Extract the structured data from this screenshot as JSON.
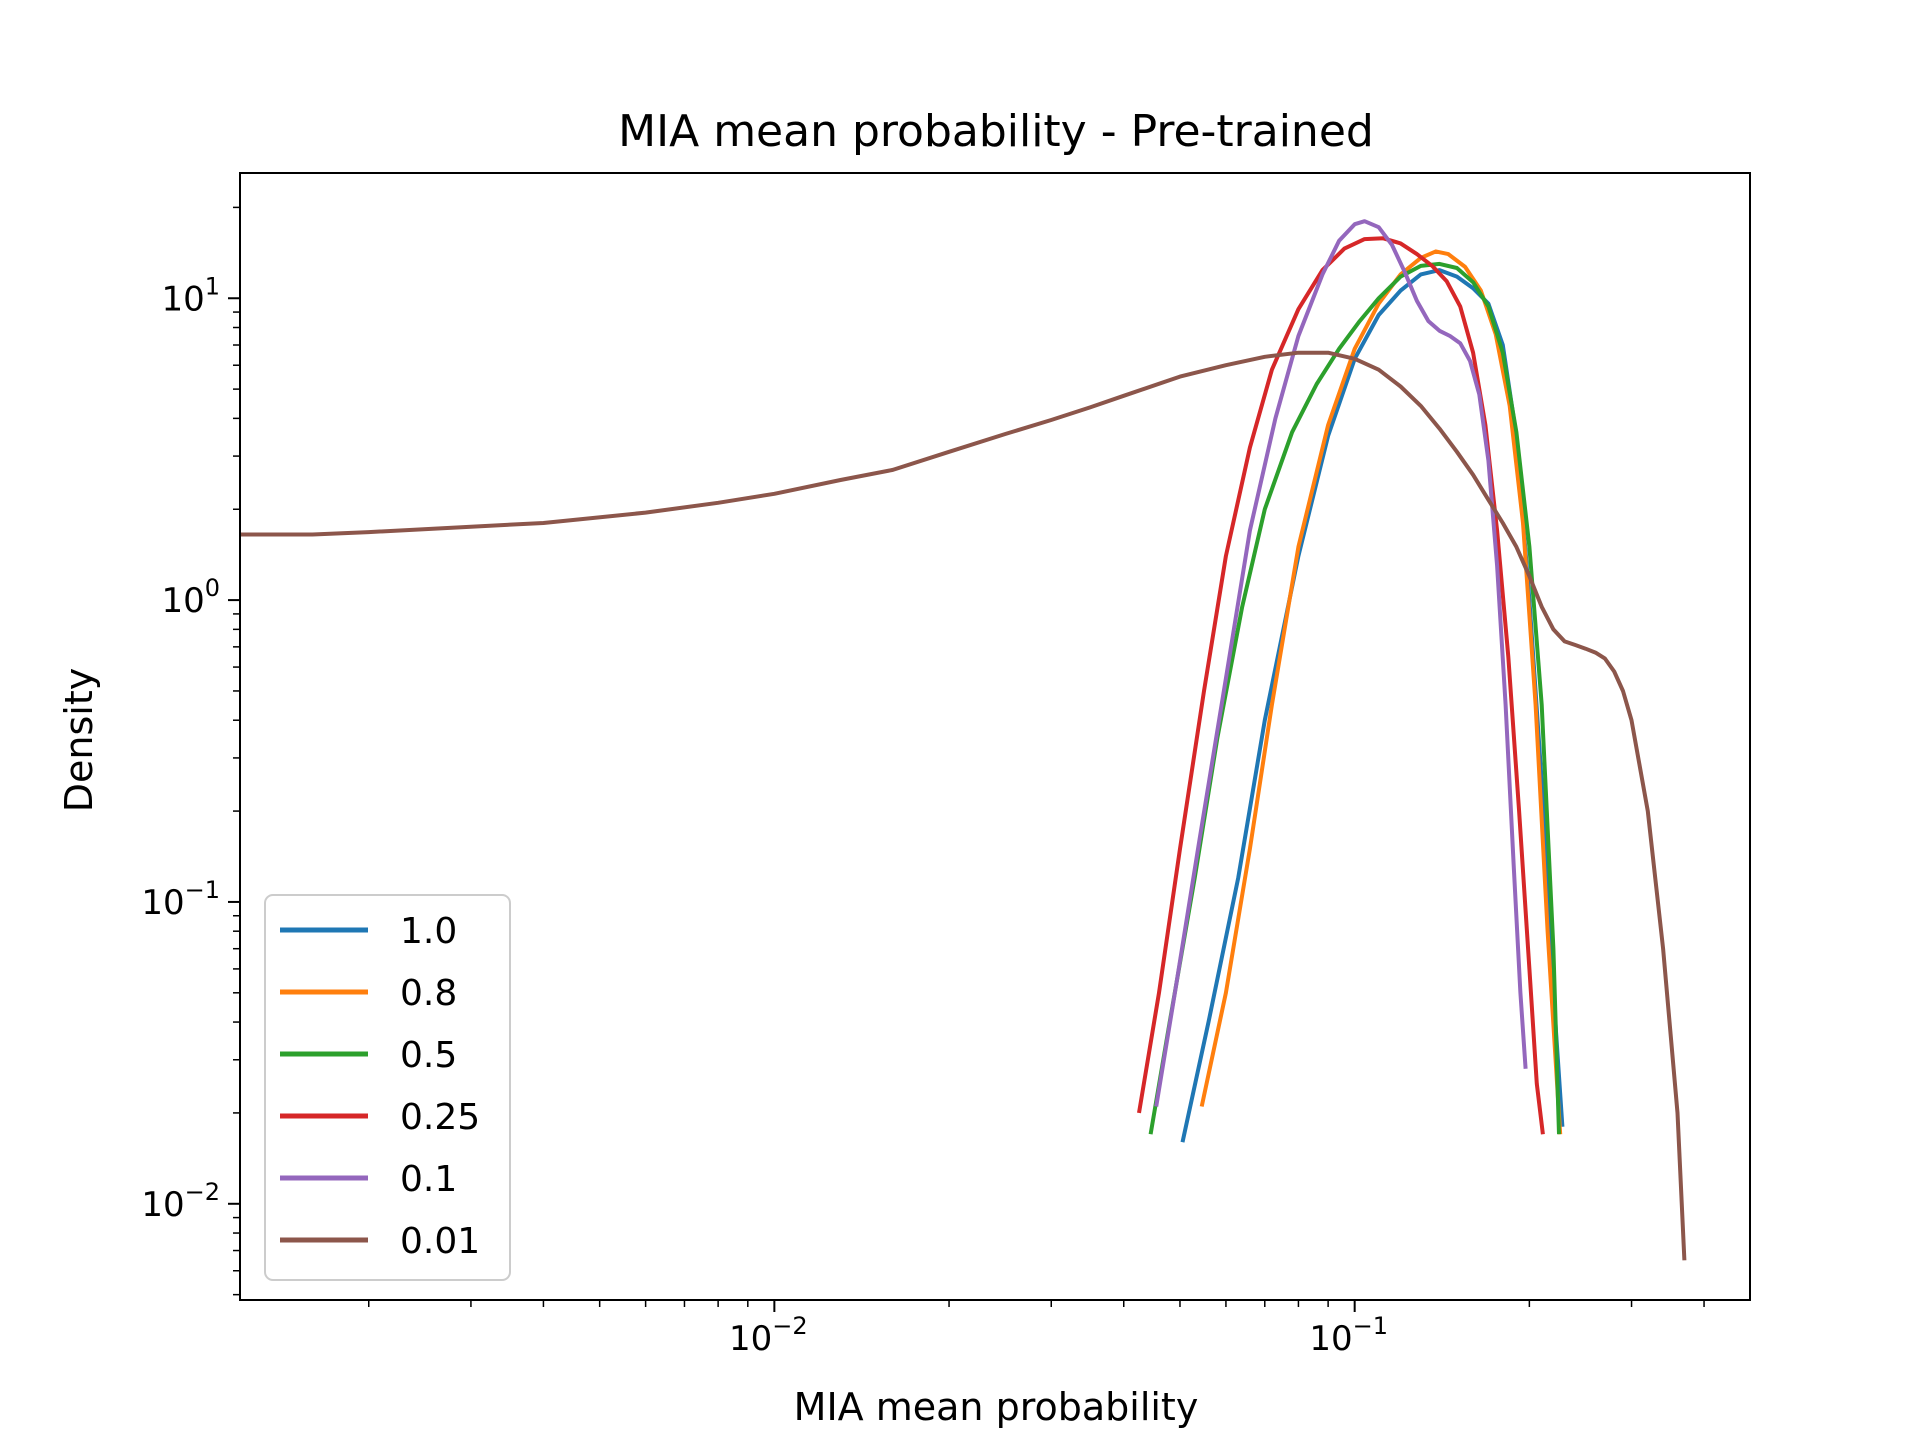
{
  "chart_data": {
    "type": "line",
    "title": "MIA mean probability - Pre-trained",
    "xlabel": "MIA mean probability",
    "ylabel": "Density",
    "xscale": "log",
    "yscale": "log",
    "xlim": [
      0.0012,
      0.48
    ],
    "ylim": [
      0.0048,
      26
    ],
    "x_ticks": [
      {
        "base": "10",
        "exp": "−2",
        "value": 0.01
      },
      {
        "base": "10",
        "exp": "−1",
        "value": 0.1
      }
    ],
    "y_ticks": [
      {
        "base": "10",
        "exp": "1",
        "value": 10
      },
      {
        "base": "10",
        "exp": "0",
        "value": 1
      },
      {
        "base": "10",
        "exp": "−1",
        "value": 0.1
      },
      {
        "base": "10",
        "exp": "−2",
        "value": 0.01
      }
    ],
    "legend_position": "lower-left",
    "series": [
      {
        "name": "1.0",
        "color": "#1f77b4",
        "x": [
          0.0505,
          0.056,
          0.063,
          0.07,
          0.08,
          0.09,
          0.1,
          0.11,
          0.12,
          0.13,
          0.14,
          0.15,
          0.16,
          0.17,
          0.18,
          0.19,
          0.2,
          0.21,
          0.22,
          0.228
        ],
        "y": [
          0.016,
          0.04,
          0.12,
          0.4,
          1.4,
          3.5,
          6.3,
          8.8,
          10.6,
          12.0,
          12.4,
          11.8,
          10.8,
          9.6,
          7.0,
          3.5,
          1.0,
          0.25,
          0.05,
          0.018
        ]
      },
      {
        "name": "0.8",
        "color": "#ff7f0e",
        "x": [
          0.0545,
          0.06,
          0.066,
          0.072,
          0.08,
          0.09,
          0.1,
          0.11,
          0.12,
          0.13,
          0.138,
          0.145,
          0.155,
          0.165,
          0.175,
          0.185,
          0.195,
          0.205,
          0.215,
          0.226
        ],
        "y": [
          0.021,
          0.05,
          0.15,
          0.45,
          1.5,
          3.8,
          6.8,
          9.6,
          12.0,
          13.6,
          14.3,
          14.0,
          12.7,
          10.6,
          7.6,
          4.4,
          1.8,
          0.45,
          0.08,
          0.017
        ]
      },
      {
        "name": "0.5",
        "color": "#2ca02c",
        "x": [
          0.0445,
          0.048,
          0.053,
          0.058,
          0.064,
          0.07,
          0.078,
          0.086,
          0.094,
          0.102,
          0.11,
          0.12,
          0.13,
          0.14,
          0.15,
          0.16,
          0.17,
          0.18,
          0.19,
          0.2,
          0.21,
          0.22,
          0.225
        ],
        "y": [
          0.017,
          0.04,
          0.12,
          0.35,
          0.95,
          2.0,
          3.6,
          5.2,
          6.8,
          8.4,
          10.0,
          11.8,
          12.8,
          13.0,
          12.6,
          11.3,
          9.4,
          6.6,
          3.6,
          1.5,
          0.45,
          0.07,
          0.017
        ]
      },
      {
        "name": "0.25",
        "color": "#d62728",
        "x": [
          0.0425,
          0.046,
          0.05,
          0.055,
          0.06,
          0.066,
          0.072,
          0.08,
          0.088,
          0.096,
          0.104,
          0.112,
          0.12,
          0.128,
          0.136,
          0.144,
          0.152,
          0.16,
          0.168,
          0.176,
          0.184,
          0.192,
          0.2,
          0.206,
          0.211
        ],
        "y": [
          0.02,
          0.05,
          0.15,
          0.5,
          1.4,
          3.2,
          5.8,
          9.2,
          12.4,
          14.6,
          15.7,
          15.8,
          15.2,
          14.0,
          12.8,
          11.4,
          9.4,
          6.6,
          3.8,
          1.7,
          0.65,
          0.2,
          0.06,
          0.025,
          0.017
        ]
      },
      {
        "name": "0.1",
        "color": "#9467bd",
        "x": [
          0.0455,
          0.049,
          0.054,
          0.06,
          0.066,
          0.073,
          0.08,
          0.088,
          0.094,
          0.1,
          0.104,
          0.11,
          0.116,
          0.122,
          0.128,
          0.134,
          0.14,
          0.146,
          0.152,
          0.158,
          0.164,
          0.17,
          0.176,
          0.182,
          0.188,
          0.193,
          0.197
        ],
        "y": [
          0.021,
          0.05,
          0.16,
          0.55,
          1.7,
          4.0,
          7.5,
          12.0,
          15.5,
          17.6,
          18.0,
          17.2,
          15.0,
          12.2,
          9.8,
          8.4,
          7.8,
          7.5,
          7.1,
          6.2,
          4.8,
          2.9,
          1.3,
          0.45,
          0.13,
          0.05,
          0.028
        ]
      },
      {
        "name": "0.01",
        "color": "#8c564b",
        "x": [
          0.0012,
          0.0016,
          0.002,
          0.003,
          0.004,
          0.006,
          0.008,
          0.01,
          0.013,
          0.016,
          0.02,
          0.025,
          0.03,
          0.035,
          0.04,
          0.05,
          0.06,
          0.07,
          0.08,
          0.09,
          0.1,
          0.11,
          0.12,
          0.13,
          0.14,
          0.15,
          0.16,
          0.17,
          0.18,
          0.19,
          0.2,
          0.21,
          0.22,
          0.23,
          0.24,
          0.25,
          0.26,
          0.27,
          0.28,
          0.29,
          0.3,
          0.32,
          0.34,
          0.36,
          0.37
        ],
        "y": [
          1.65,
          1.65,
          1.68,
          1.75,
          1.8,
          1.95,
          2.1,
          2.25,
          2.5,
          2.7,
          3.1,
          3.55,
          3.95,
          4.35,
          4.75,
          5.5,
          6.0,
          6.4,
          6.6,
          6.6,
          6.3,
          5.8,
          5.1,
          4.4,
          3.7,
          3.1,
          2.6,
          2.15,
          1.8,
          1.5,
          1.2,
          0.95,
          0.8,
          0.73,
          0.71,
          0.69,
          0.67,
          0.64,
          0.58,
          0.5,
          0.4,
          0.2,
          0.07,
          0.02,
          0.0065
        ]
      }
    ]
  }
}
